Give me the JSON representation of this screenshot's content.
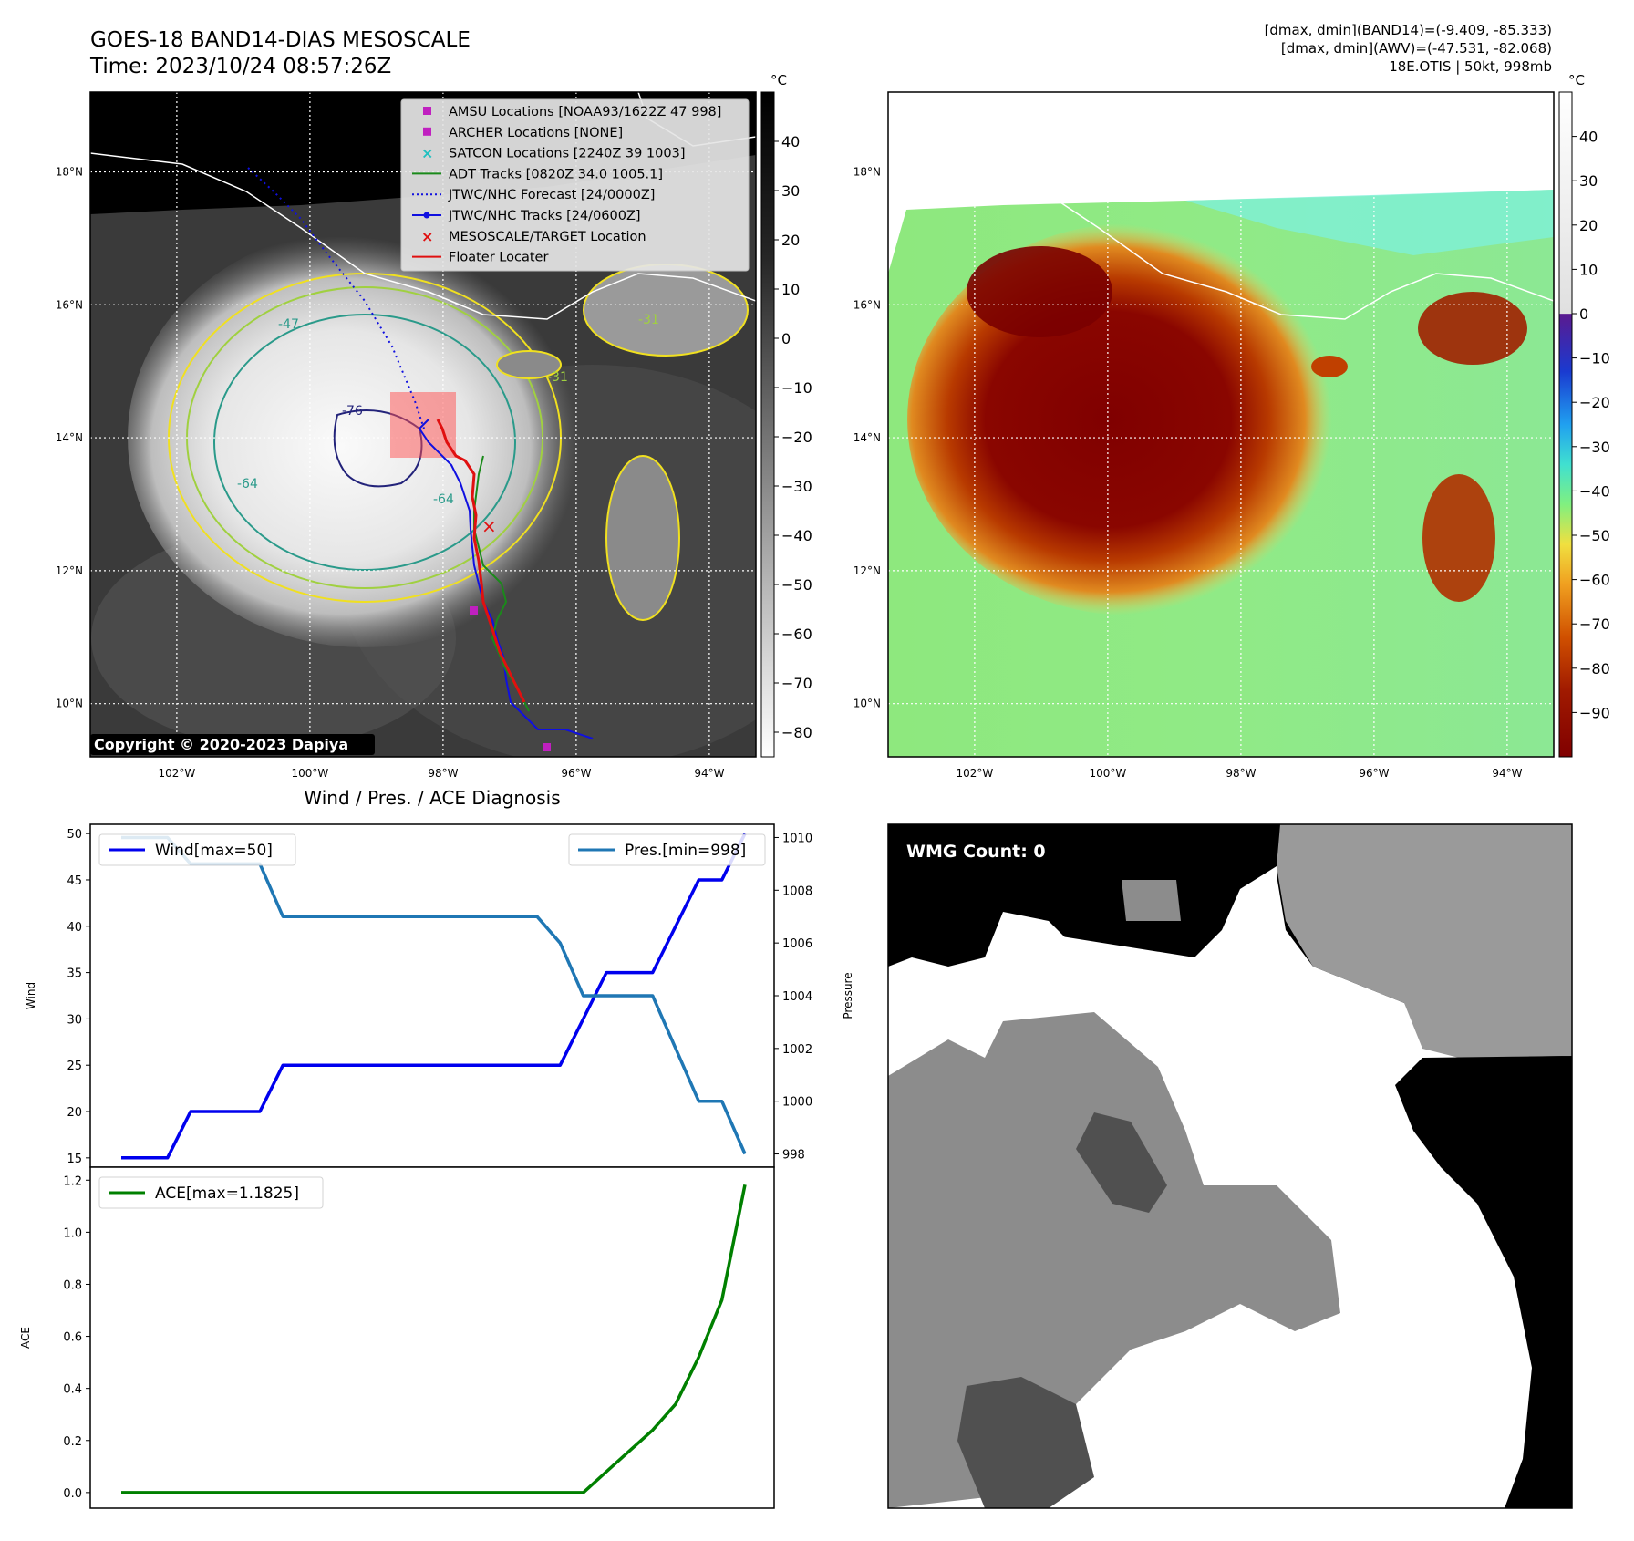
{
  "header": {
    "title_line1": "GOES-18 BAND14-DIAS MESOSCALE",
    "title_line2": "Time: 2023/10/24 08:57:26Z",
    "right_line1": "[dmax, dmin](BAND14)=(-9.409, -85.333)",
    "right_line2": "[dmax, dmin](AWV)=(-47.531, -82.068)",
    "right_line3": "18E.OTIS | 50kt, 998mb"
  },
  "map": {
    "lat_labels": [
      "18°N",
      "16°N",
      "14°N",
      "12°N",
      "10°N"
    ],
    "lon_labels": [
      "102°W",
      "100°W",
      "98°W",
      "96°W",
      "94°W"
    ],
    "lat_values": [
      18,
      16,
      14,
      12,
      10
    ],
    "lon_values": [
      -102,
      -100,
      -98,
      -96,
      -94
    ],
    "extent": {
      "lon_min": -103.3,
      "lon_max": -93.3,
      "lat_min": 9.2,
      "lat_max": 19.2
    },
    "copyright": "Copyright © 2020-2023 Dapiya",
    "contour_labels": [
      "-31",
      "-47",
      "-64",
      "-76",
      "-31",
      "-64"
    ],
    "legend": [
      {
        "label": "AMSU Locations [NOAA93/1622Z 47 998]",
        "color": "#c020c0",
        "marker": "square"
      },
      {
        "label": "ARCHER Locations [NONE]",
        "color": "#c020c0",
        "marker": "square"
      },
      {
        "label": "SATCON Locations [2240Z 39 1003]",
        "color": "#20c0c0",
        "marker": "x"
      },
      {
        "label": "ADT Tracks [0820Z 34.0 1005.1]",
        "color": "#1a8a1a",
        "marker": "line"
      },
      {
        "label": "JTWC/NHC Forecast [24/0000Z]",
        "color": "#1010e0",
        "marker": "dotted"
      },
      {
        "label": "JTWC/NHC Tracks [24/0600Z]",
        "color": "#1010e0",
        "marker": "line-dot"
      },
      {
        "label": "MESOSCALE/TARGET Location",
        "color": "#e01010",
        "marker": "x"
      },
      {
        "label": "Floater Locater",
        "color": "#e01010",
        "marker": "line"
      }
    ]
  },
  "colorbar_left": {
    "unit": "°C",
    "ticks": [
      "40",
      "30",
      "20",
      "10",
      "0",
      "−10",
      "−20",
      "−30",
      "−40",
      "−50",
      "−60",
      "−70",
      "−80"
    ],
    "tick_values": [
      40,
      30,
      20,
      10,
      0,
      -10,
      -20,
      -30,
      -40,
      -50,
      -60,
      -70,
      -80
    ],
    "range": [
      -85,
      50
    ]
  },
  "colorbar_right": {
    "unit": "°C",
    "ticks": [
      "40",
      "30",
      "20",
      "10",
      "0",
      "−10",
      "−20",
      "−30",
      "−40",
      "−50",
      "−60",
      "−70",
      "−80",
      "−90"
    ],
    "tick_values": [
      40,
      30,
      20,
      10,
      0,
      -10,
      -20,
      -30,
      -40,
      -50,
      -60,
      -70,
      -80,
      -90
    ],
    "range": [
      -100,
      50
    ]
  },
  "diagnosis": {
    "title": "Wind / Pres. / ACE Diagnosis",
    "wind_ylabel": "Wind",
    "pres_ylabel": "Pressure",
    "ace_ylabel": "ACE",
    "wind_legend": "Wind[max=50]",
    "pres_legend": "Pres.[min=998]",
    "ace_legend": "ACE[max=1.1825]",
    "wind_ticks": [
      "50",
      "45",
      "40",
      "35",
      "30",
      "25",
      "20",
      "15"
    ],
    "wind_tick_values": [
      50,
      45,
      40,
      35,
      30,
      25,
      20,
      15
    ],
    "pres_ticks": [
      "1010",
      "1008",
      "1006",
      "1004",
      "1002",
      "1000",
      "998"
    ],
    "pres_tick_values": [
      1010,
      1008,
      1006,
      1004,
      1002,
      1000,
      998
    ],
    "ace_ticks": [
      "1.2",
      "1.0",
      "0.8",
      "0.6",
      "0.4",
      "0.2",
      "0.0"
    ],
    "ace_tick_values": [
      1.2,
      1.0,
      0.8,
      0.6,
      0.4,
      0.2,
      0.0
    ]
  },
  "wmg": {
    "label": "WMG Count: 0"
  },
  "chart_data": [
    {
      "type": "line",
      "title": "Wind / Pres. / ACE Diagnosis",
      "x": [
        0,
        1,
        2,
        3,
        4,
        5,
        6,
        7,
        8,
        9,
        10,
        11,
        12,
        13,
        14,
        15,
        16,
        17,
        18,
        19,
        20,
        21,
        22,
        23,
        24,
        25,
        26,
        27
      ],
      "series": [
        {
          "name": "Wind[max=50]",
          "axis": "left",
          "color": "#0000ee",
          "values": [
            15,
            15,
            15,
            20,
            20,
            20,
            20,
            25,
            25,
            25,
            25,
            25,
            25,
            25,
            25,
            25,
            25,
            25,
            25,
            25,
            30,
            35,
            35,
            35,
            40,
            45,
            45,
            50
          ]
        },
        {
          "name": "Pres.[min=998]",
          "axis": "right",
          "color": "#1f77b4",
          "values": [
            1010,
            1010,
            1010,
            1009,
            1009,
            1009,
            1009,
            1007,
            1007,
            1007,
            1007,
            1007,
            1007,
            1007,
            1007,
            1007,
            1007,
            1007,
            1007,
            1006,
            1004,
            1004,
            1004,
            1004,
            1002,
            1000,
            1000,
            998
          ]
        }
      ],
      "ylim": [
        14,
        51
      ],
      "ylim_right": [
        997.5,
        1010.5
      ],
      "ylabel": "Wind",
      "ylabel_right": "Pressure"
    },
    {
      "type": "line",
      "x": [
        0,
        1,
        2,
        3,
        4,
        5,
        6,
        7,
        8,
        9,
        10,
        11,
        12,
        13,
        14,
        15,
        16,
        17,
        18,
        19,
        20,
        21,
        22,
        23,
        24,
        25,
        26,
        27
      ],
      "series": [
        {
          "name": "ACE[max=1.1825]",
          "color": "#008000",
          "values": [
            0,
            0,
            0,
            0,
            0,
            0,
            0,
            0,
            0,
            0,
            0,
            0,
            0,
            0,
            0,
            0,
            0,
            0,
            0,
            0,
            0,
            0.08,
            0.16,
            0.24,
            0.34,
            0.52,
            0.74,
            1.1825
          ]
        }
      ],
      "ylim": [
        -0.06,
        1.25
      ],
      "ylabel": "ACE"
    }
  ]
}
